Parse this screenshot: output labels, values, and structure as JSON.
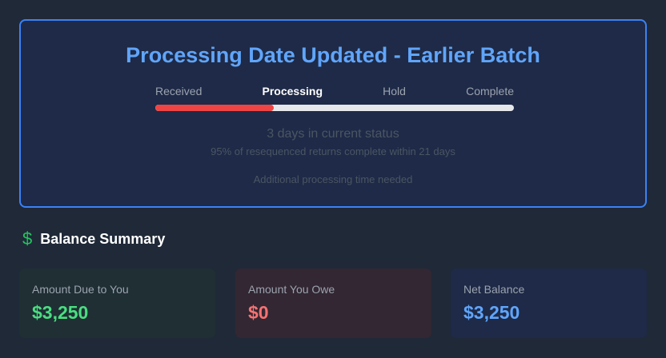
{
  "status": {
    "title": "Processing Date Updated - Earlier Batch",
    "steps": [
      "Received",
      "Processing",
      "Hold",
      "Complete"
    ],
    "active_step": 1,
    "progress_percent": 33,
    "days": "3 days in current status",
    "stat": "95% of resequenced returns complete within 21 days",
    "note": "Additional processing time needed"
  },
  "balance": {
    "icon": "dollar-icon",
    "title": "Balance Summary",
    "cards": [
      {
        "label": "Amount Due to You",
        "value": "$3,250",
        "color": "#4ade80",
        "bg": "#1f2f34"
      },
      {
        "label": "Amount You Owe",
        "value": "$0",
        "color": "#f87171",
        "bg": "#322732"
      },
      {
        "label": "Net Balance",
        "value": "$3,250",
        "color": "#60a5fa",
        "bg": "#1e2a47"
      }
    ]
  }
}
